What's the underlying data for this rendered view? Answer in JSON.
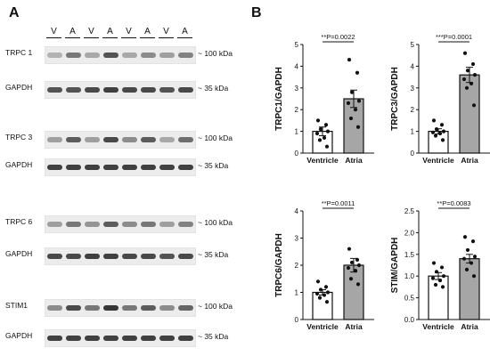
{
  "panel_a": {
    "letter": "A",
    "lanes": [
      "V",
      "A",
      "V",
      "A",
      "V",
      "A",
      "V",
      "A"
    ],
    "blots": [
      {
        "label": "TRPC 1",
        "size": "~ 100 kDa",
        "intensity": [
          0.25,
          0.55,
          0.3,
          0.75,
          0.3,
          0.45,
          0.35,
          0.5
        ]
      },
      {
        "label": "GAPDH",
        "size": "~ 35 kDa",
        "intensity": [
          0.75,
          0.75,
          0.8,
          0.85,
          0.8,
          0.8,
          0.75,
          0.8
        ]
      },
      {
        "label": "TRPC 3",
        "size": "~ 100 kDa",
        "intensity": [
          0.35,
          0.7,
          0.35,
          0.8,
          0.45,
          0.7,
          0.3,
          0.6
        ]
      },
      {
        "label": "GAPDH",
        "size": "~ 35 kDa",
        "intensity": [
          0.85,
          0.85,
          0.85,
          0.85,
          0.85,
          0.85,
          0.85,
          0.85
        ]
      },
      {
        "label": "TRPC 6",
        "size": "~ 100 kDa",
        "intensity": [
          0.35,
          0.55,
          0.4,
          0.7,
          0.45,
          0.55,
          0.35,
          0.5
        ]
      },
      {
        "label": "GAPDH",
        "size": "~ 35 kDa",
        "intensity": [
          0.8,
          0.8,
          0.85,
          0.85,
          0.8,
          0.8,
          0.75,
          0.8
        ]
      },
      {
        "label": "STIM1",
        "size": "~ 100 kDa",
        "intensity": [
          0.45,
          0.8,
          0.55,
          0.9,
          0.55,
          0.7,
          0.45,
          0.65
        ]
      },
      {
        "label": "GAPDH",
        "size": "~ 35 kDa",
        "intensity": [
          0.85,
          0.85,
          0.85,
          0.85,
          0.85,
          0.85,
          0.85,
          0.85
        ]
      }
    ]
  },
  "panel_b": {
    "letter": "B",
    "colors": {
      "ventricle_fill": "#ffffff",
      "atria_fill": "#a6a6a6",
      "bar_stroke": "#111111"
    }
  },
  "chart_data": [
    {
      "type": "bar",
      "ylabel": "TRPC1/GAPDH",
      "categories": [
        "Ventricle",
        "Atria"
      ],
      "values": [
        1.0,
        2.5
      ],
      "sem": [
        0.2,
        0.4
      ],
      "ylim": [
        0,
        5
      ],
      "yticks": [
        0,
        1,
        2,
        3,
        4,
        5
      ],
      "annotation": "**P=0.0022",
      "points": [
        [
          1.5,
          1.3,
          1.1,
          1.0,
          0.9,
          0.7,
          0.6,
          0.3
        ],
        [
          4.3,
          3.7,
          2.8,
          2.4,
          2.3,
          2.0,
          1.6,
          1.2
        ]
      ]
    },
    {
      "type": "bar",
      "ylabel": "TRPC3/GAPDH",
      "categories": [
        "Ventricle",
        "Atria"
      ],
      "values": [
        1.0,
        3.6
      ],
      "sem": [
        0.12,
        0.35
      ],
      "ylim": [
        0,
        5
      ],
      "yticks": [
        0,
        1,
        2,
        3,
        4,
        5
      ],
      "annotation": "***P=0.0001",
      "points": [
        [
          1.5,
          1.3,
          1.1,
          1.0,
          0.95,
          0.9,
          0.8,
          0.6
        ],
        [
          4.6,
          4.1,
          3.8,
          3.6,
          3.4,
          3.2,
          3.0,
          2.2
        ]
      ]
    },
    {
      "type": "bar",
      "ylabel": "TRPC6/GAPDH",
      "categories": [
        "Ventricle",
        "Atria"
      ],
      "values": [
        1.0,
        2.0
      ],
      "sem": [
        0.1,
        0.25
      ],
      "ylim": [
        0,
        4
      ],
      "yticks": [
        0,
        1,
        2,
        3,
        4
      ],
      "annotation": "**P=0.0011",
      "points": [
        [
          1.4,
          1.2,
          1.1,
          1.0,
          0.95,
          0.9,
          0.8,
          0.65
        ],
        [
          2.6,
          2.2,
          2.1,
          2.0,
          1.9,
          1.8,
          1.5,
          1.3
        ]
      ]
    },
    {
      "type": "bar",
      "ylabel": "STIM/GAPDH",
      "categories": [
        "Ventricle",
        "Atria"
      ],
      "values": [
        1.0,
        1.4
      ],
      "sem": [
        0.08,
        0.1
      ],
      "ylim": [
        0,
        2.5
      ],
      "yticks": [
        0.0,
        0.5,
        1.0,
        1.5,
        2.0,
        2.5
      ],
      "annotation": "**P=0.0083",
      "points": [
        [
          1.3,
          1.2,
          1.1,
          1.0,
          0.95,
          0.9,
          0.8,
          0.75
        ],
        [
          1.9,
          1.8,
          1.6,
          1.45,
          1.4,
          1.3,
          1.15,
          1.0
        ]
      ]
    }
  ]
}
